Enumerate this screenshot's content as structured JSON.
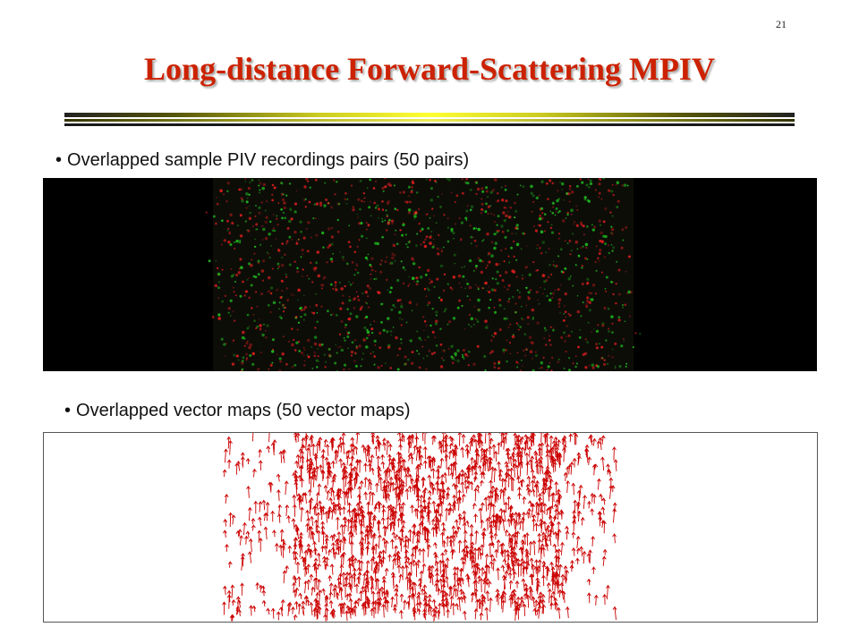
{
  "slide": {
    "page_number": "21",
    "title": "Long-distance Forward-Scattering MPIV"
  },
  "bullets": [
    {
      "marker": "•",
      "text": "Overlapped sample PIV recordings pairs (50 pairs)"
    },
    {
      "marker": "•",
      "text": "Overlapped vector maps (50 vector maps)"
    }
  ],
  "figures": {
    "piv_recording": {
      "content": "PIV recording image, red and green particle speckles on black",
      "colors": {
        "background": "#000000",
        "frame_a": "#ff2222",
        "frame_b": "#22dd22"
      }
    },
    "vector_map": {
      "content": "vector map, red arrows on white",
      "colors": {
        "background": "#ffffff",
        "arrow": "#cc0000"
      }
    }
  },
  "colors": {
    "title": "#cc2200",
    "text": "#111111"
  }
}
